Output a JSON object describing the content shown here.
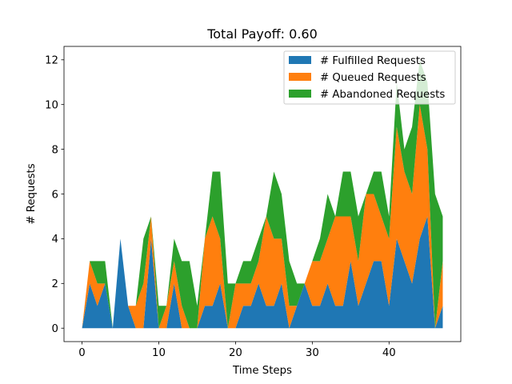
{
  "chart_data": {
    "type": "area",
    "stacked": true,
    "title": "Total Payoff: 0.60",
    "xlabel": "Time Steps",
    "ylabel": "# Requests",
    "xlim": [
      -2.35,
      49.35
    ],
    "ylim": [
      -0.6,
      12.6
    ],
    "xticks": [
      0,
      10,
      20,
      30,
      40
    ],
    "yticks": [
      0,
      2,
      4,
      6,
      8,
      10,
      12
    ],
    "grid": false,
    "legend_position": "upper right",
    "x": [
      0,
      1,
      2,
      3,
      4,
      5,
      6,
      7,
      8,
      9,
      10,
      11,
      12,
      13,
      14,
      15,
      16,
      17,
      18,
      19,
      20,
      21,
      22,
      23,
      24,
      25,
      26,
      27,
      28,
      29,
      30,
      31,
      32,
      33,
      34,
      35,
      36,
      37,
      38,
      39,
      40,
      41,
      42,
      43,
      44,
      45,
      46,
      47
    ],
    "series": [
      {
        "name": "# Fulfilled Requests",
        "color": "#1f77b4",
        "values": [
          0,
          2,
          1,
          2,
          0,
          4,
          1,
          0,
          0,
          4,
          0,
          0,
          2,
          0,
          0,
          0,
          1,
          1,
          2,
          0,
          0,
          1,
          1,
          2,
          1,
          1,
          2,
          0,
          1,
          2,
          1,
          1,
          2,
          1,
          1,
          3,
          1,
          2,
          3,
          3,
          1,
          4,
          3,
          2,
          4,
          5,
          0,
          1
        ]
      },
      {
        "name": "# Queued Requests",
        "color": "#ff7f0e",
        "values": [
          0,
          1,
          1,
          0,
          0,
          0,
          0,
          1,
          2,
          1,
          0,
          1,
          1,
          1,
          0,
          0,
          3,
          4,
          2,
          0,
          2,
          1,
          1,
          1,
          4,
          3,
          2,
          1,
          0,
          0,
          2,
          2,
          2,
          4,
          4,
          2,
          2,
          4,
          3,
          2,
          3,
          5,
          4,
          4,
          6,
          3,
          0,
          2
        ]
      },
      {
        "name": "# Abandoned Requests",
        "color": "#2ca02c",
        "values": [
          0,
          0,
          1,
          1,
          0,
          0,
          0,
          0,
          2,
          0,
          1,
          0,
          1,
          2,
          3,
          1,
          0,
          2,
          3,
          2,
          0,
          1,
          1,
          1,
          0,
          3,
          2,
          2,
          1,
          0,
          0,
          1,
          2,
          0,
          2,
          2,
          2,
          0,
          1,
          2,
          1,
          2,
          1,
          3,
          2,
          3,
          6,
          2
        ]
      }
    ]
  }
}
